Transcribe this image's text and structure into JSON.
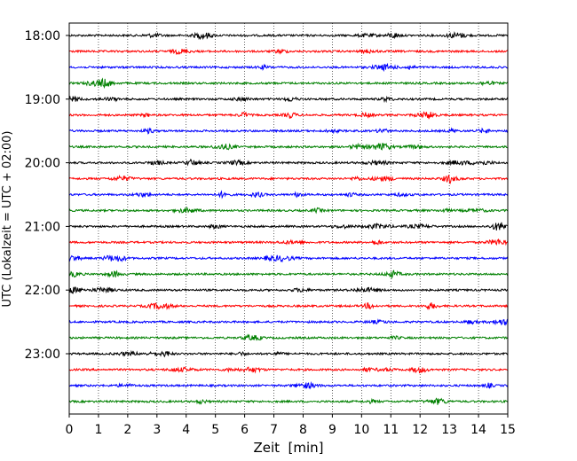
{
  "chart_data": {
    "type": "line",
    "title": "",
    "xlabel": "Zeit  [min]",
    "ylabel": "UTC (Lokalzeit = UTC + 02:00)",
    "xlim": [
      0,
      15
    ],
    "x_ticks": [
      "0",
      "1",
      "2",
      "3",
      "4",
      "5",
      "6",
      "7",
      "8",
      "9",
      "10",
      "11",
      "12",
      "13",
      "14",
      "15"
    ],
    "y_tick_labels": [
      "18:00",
      "19:00",
      "20:00",
      "21:00",
      "22:00",
      "23:00"
    ],
    "grid": {
      "vertical": true,
      "style": "dotted"
    },
    "legend": "none",
    "trace_interval_min": 15,
    "trace_colors": [
      "#000000",
      "#ff0000",
      "#0000ff",
      "#008000"
    ],
    "traces": [
      {
        "start": "18:00",
        "color": "#000000"
      },
      {
        "start": "18:15",
        "color": "#ff0000"
      },
      {
        "start": "18:30",
        "color": "#0000ff"
      },
      {
        "start": "18:45",
        "color": "#008000"
      },
      {
        "start": "19:00",
        "color": "#000000"
      },
      {
        "start": "19:15",
        "color": "#ff0000"
      },
      {
        "start": "19:30",
        "color": "#0000ff"
      },
      {
        "start": "19:45",
        "color": "#008000"
      },
      {
        "start": "20:00",
        "color": "#000000"
      },
      {
        "start": "20:15",
        "color": "#ff0000"
      },
      {
        "start": "20:30",
        "color": "#0000ff"
      },
      {
        "start": "20:45",
        "color": "#008000"
      },
      {
        "start": "21:00",
        "color": "#000000"
      },
      {
        "start": "21:15",
        "color": "#ff0000"
      },
      {
        "start": "21:30",
        "color": "#0000ff"
      },
      {
        "start": "21:45",
        "color": "#008000"
      },
      {
        "start": "22:00",
        "color": "#000000"
      },
      {
        "start": "22:15",
        "color": "#ff0000"
      },
      {
        "start": "22:30",
        "color": "#0000ff"
      },
      {
        "start": "22:45",
        "color": "#008000"
      },
      {
        "start": "23:00",
        "color": "#000000"
      },
      {
        "start": "23:15",
        "color": "#ff0000"
      },
      {
        "start": "23:30",
        "color": "#0000ff"
      },
      {
        "start": "23:45",
        "color": "#008000"
      }
    ]
  }
}
